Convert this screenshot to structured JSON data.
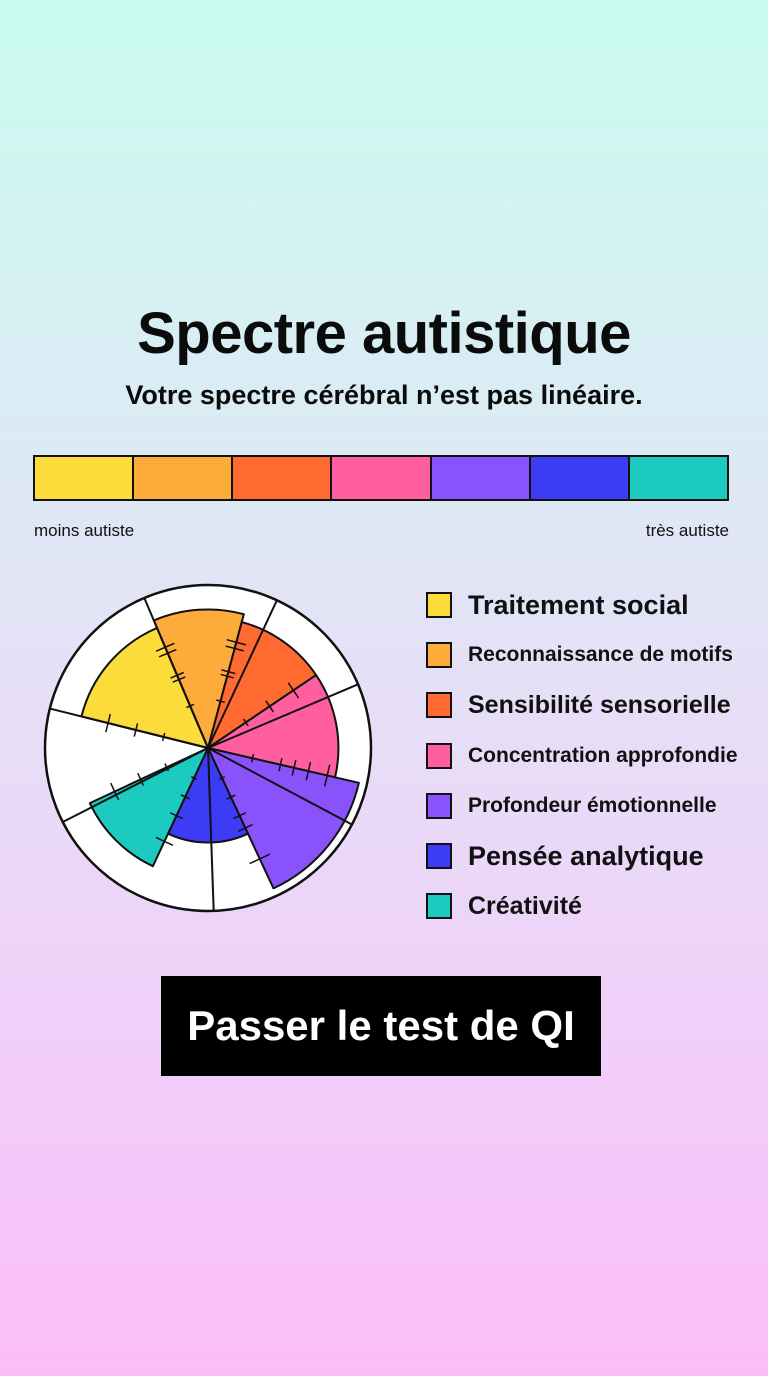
{
  "header": {
    "title": "Spectre autistique",
    "subtitle": "Votre spectre cérébral n’est pas linéaire."
  },
  "spectrum": {
    "colors": [
      "#fcdc3a",
      "#fdab3b",
      "#ff6a30",
      "#ff5f9f",
      "#8a52fb",
      "#3c3cf5",
      "#1ccabf"
    ],
    "left_label": "moins autiste",
    "right_label": "très autiste"
  },
  "chart_data": {
    "type": "pie",
    "categories": [
      "Traitement social",
      "Reconnaissance de motifs",
      "Sensibilité sensorielle",
      "Concentration approfondie",
      "Profondeur émotionnelle",
      "Pensée analytique",
      "Créativité"
    ],
    "values": [
      0.8,
      0.85,
      0.8,
      0.8,
      0.95,
      0.58,
      0.8
    ],
    "colors": [
      "#fcdc3a",
      "#fdab3b",
      "#ff6a30",
      "#ff5f9f",
      "#8a52fb",
      "#3c3cf5",
      "#1ccabf"
    ]
  },
  "legend": {
    "items": [
      {
        "label": "Traitement social",
        "color": "#fcdc3a",
        "size": 27
      },
      {
        "label": "Reconnaissance de motifs",
        "color": "#fdab3b",
        "size": 21
      },
      {
        "label": "Sensibilité sensorielle",
        "color": "#ff6a30",
        "size": 25
      },
      {
        "label": "Concentration approfondie",
        "color": "#ff5f9f",
        "size": 21
      },
      {
        "label": "Profondeur émotionnelle",
        "color": "#8a52fb",
        "size": 21
      },
      {
        "label": "Pensée analytique",
        "color": "#3c3cf5",
        "size": 27
      },
      {
        "label": "Créativité",
        "color": "#1ccabf",
        "size": 25
      }
    ]
  },
  "cta": {
    "label": "Passer le test de QI"
  }
}
